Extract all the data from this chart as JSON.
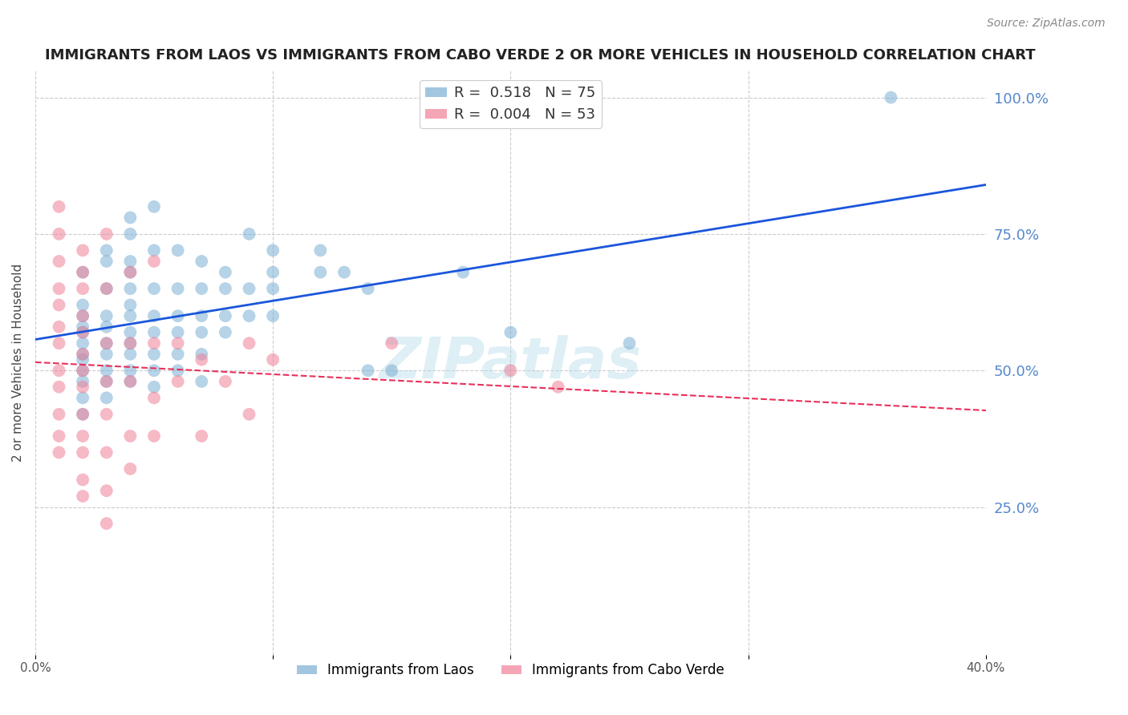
{
  "title": "IMMIGRANTS FROM LAOS VS IMMIGRANTS FROM CABO VERDE 2 OR MORE VEHICLES IN HOUSEHOLD CORRELATION CHART",
  "source": "Source: ZipAtlas.com",
  "ylabel": "2 or more Vehicles in Household",
  "x_min": 0.0,
  "x_max": 0.4,
  "y_min": 0.0,
  "y_max": 1.05,
  "y_tick_labels_right": [
    "100.0%",
    "75.0%",
    "50.0%",
    "25.0%"
  ],
  "y_tick_vals_right": [
    1.0,
    0.75,
    0.5,
    0.25
  ],
  "grid_color": "#cccccc",
  "background_color": "#ffffff",
  "laos_color": "#7bafd4",
  "cabo_color": "#f08098",
  "laos_line_color": "#1a56db",
  "cabo_line_color": "#e8305a",
  "right_label_color": "#5588cc",
  "laos_scatter": [
    [
      0.02,
      0.62
    ],
    [
      0.02,
      0.68
    ],
    [
      0.02,
      0.58
    ],
    [
      0.02,
      0.55
    ],
    [
      0.02,
      0.52
    ],
    [
      0.02,
      0.48
    ],
    [
      0.02,
      0.45
    ],
    [
      0.02,
      0.42
    ],
    [
      0.02,
      0.5
    ],
    [
      0.02,
      0.57
    ],
    [
      0.02,
      0.6
    ],
    [
      0.02,
      0.53
    ],
    [
      0.03,
      0.7
    ],
    [
      0.03,
      0.72
    ],
    [
      0.03,
      0.65
    ],
    [
      0.03,
      0.6
    ],
    [
      0.03,
      0.55
    ],
    [
      0.03,
      0.58
    ],
    [
      0.03,
      0.5
    ],
    [
      0.03,
      0.48
    ],
    [
      0.03,
      0.45
    ],
    [
      0.03,
      0.53
    ],
    [
      0.04,
      0.78
    ],
    [
      0.04,
      0.75
    ],
    [
      0.04,
      0.7
    ],
    [
      0.04,
      0.68
    ],
    [
      0.04,
      0.65
    ],
    [
      0.04,
      0.62
    ],
    [
      0.04,
      0.6
    ],
    [
      0.04,
      0.57
    ],
    [
      0.04,
      0.55
    ],
    [
      0.04,
      0.53
    ],
    [
      0.04,
      0.5
    ],
    [
      0.04,
      0.48
    ],
    [
      0.05,
      0.8
    ],
    [
      0.05,
      0.72
    ],
    [
      0.05,
      0.65
    ],
    [
      0.05,
      0.6
    ],
    [
      0.05,
      0.57
    ],
    [
      0.05,
      0.53
    ],
    [
      0.05,
      0.5
    ],
    [
      0.05,
      0.47
    ],
    [
      0.06,
      0.72
    ],
    [
      0.06,
      0.65
    ],
    [
      0.06,
      0.6
    ],
    [
      0.06,
      0.57
    ],
    [
      0.06,
      0.53
    ],
    [
      0.06,
      0.5
    ],
    [
      0.07,
      0.7
    ],
    [
      0.07,
      0.65
    ],
    [
      0.07,
      0.6
    ],
    [
      0.07,
      0.57
    ],
    [
      0.07,
      0.53
    ],
    [
      0.07,
      0.48
    ],
    [
      0.08,
      0.68
    ],
    [
      0.08,
      0.65
    ],
    [
      0.08,
      0.6
    ],
    [
      0.08,
      0.57
    ],
    [
      0.09,
      0.75
    ],
    [
      0.09,
      0.65
    ],
    [
      0.09,
      0.6
    ],
    [
      0.1,
      0.72
    ],
    [
      0.1,
      0.68
    ],
    [
      0.1,
      0.65
    ],
    [
      0.1,
      0.6
    ],
    [
      0.12,
      0.72
    ],
    [
      0.12,
      0.68
    ],
    [
      0.13,
      0.68
    ],
    [
      0.14,
      0.65
    ],
    [
      0.14,
      0.5
    ],
    [
      0.15,
      0.5
    ],
    [
      0.18,
      0.68
    ],
    [
      0.2,
      0.57
    ],
    [
      0.25,
      0.55
    ],
    [
      0.36,
      1.0
    ]
  ],
  "cabo_scatter": [
    [
      0.01,
      0.8
    ],
    [
      0.01,
      0.75
    ],
    [
      0.01,
      0.7
    ],
    [
      0.01,
      0.65
    ],
    [
      0.01,
      0.62
    ],
    [
      0.01,
      0.58
    ],
    [
      0.01,
      0.55
    ],
    [
      0.01,
      0.5
    ],
    [
      0.01,
      0.47
    ],
    [
      0.01,
      0.42
    ],
    [
      0.01,
      0.38
    ],
    [
      0.01,
      0.35
    ],
    [
      0.02,
      0.72
    ],
    [
      0.02,
      0.68
    ],
    [
      0.02,
      0.65
    ],
    [
      0.02,
      0.6
    ],
    [
      0.02,
      0.57
    ],
    [
      0.02,
      0.53
    ],
    [
      0.02,
      0.5
    ],
    [
      0.02,
      0.47
    ],
    [
      0.02,
      0.42
    ],
    [
      0.02,
      0.38
    ],
    [
      0.02,
      0.35
    ],
    [
      0.02,
      0.3
    ],
    [
      0.02,
      0.27
    ],
    [
      0.03,
      0.75
    ],
    [
      0.03,
      0.65
    ],
    [
      0.03,
      0.55
    ],
    [
      0.03,
      0.48
    ],
    [
      0.03,
      0.42
    ],
    [
      0.03,
      0.35
    ],
    [
      0.03,
      0.28
    ],
    [
      0.03,
      0.22
    ],
    [
      0.04,
      0.68
    ],
    [
      0.04,
      0.55
    ],
    [
      0.04,
      0.48
    ],
    [
      0.04,
      0.38
    ],
    [
      0.04,
      0.32
    ],
    [
      0.05,
      0.7
    ],
    [
      0.05,
      0.55
    ],
    [
      0.05,
      0.45
    ],
    [
      0.05,
      0.38
    ],
    [
      0.06,
      0.55
    ],
    [
      0.06,
      0.48
    ],
    [
      0.07,
      0.52
    ],
    [
      0.07,
      0.38
    ],
    [
      0.08,
      0.48
    ],
    [
      0.09,
      0.55
    ],
    [
      0.09,
      0.42
    ],
    [
      0.1,
      0.52
    ],
    [
      0.15,
      0.55
    ],
    [
      0.2,
      0.5
    ],
    [
      0.22,
      0.47
    ]
  ]
}
